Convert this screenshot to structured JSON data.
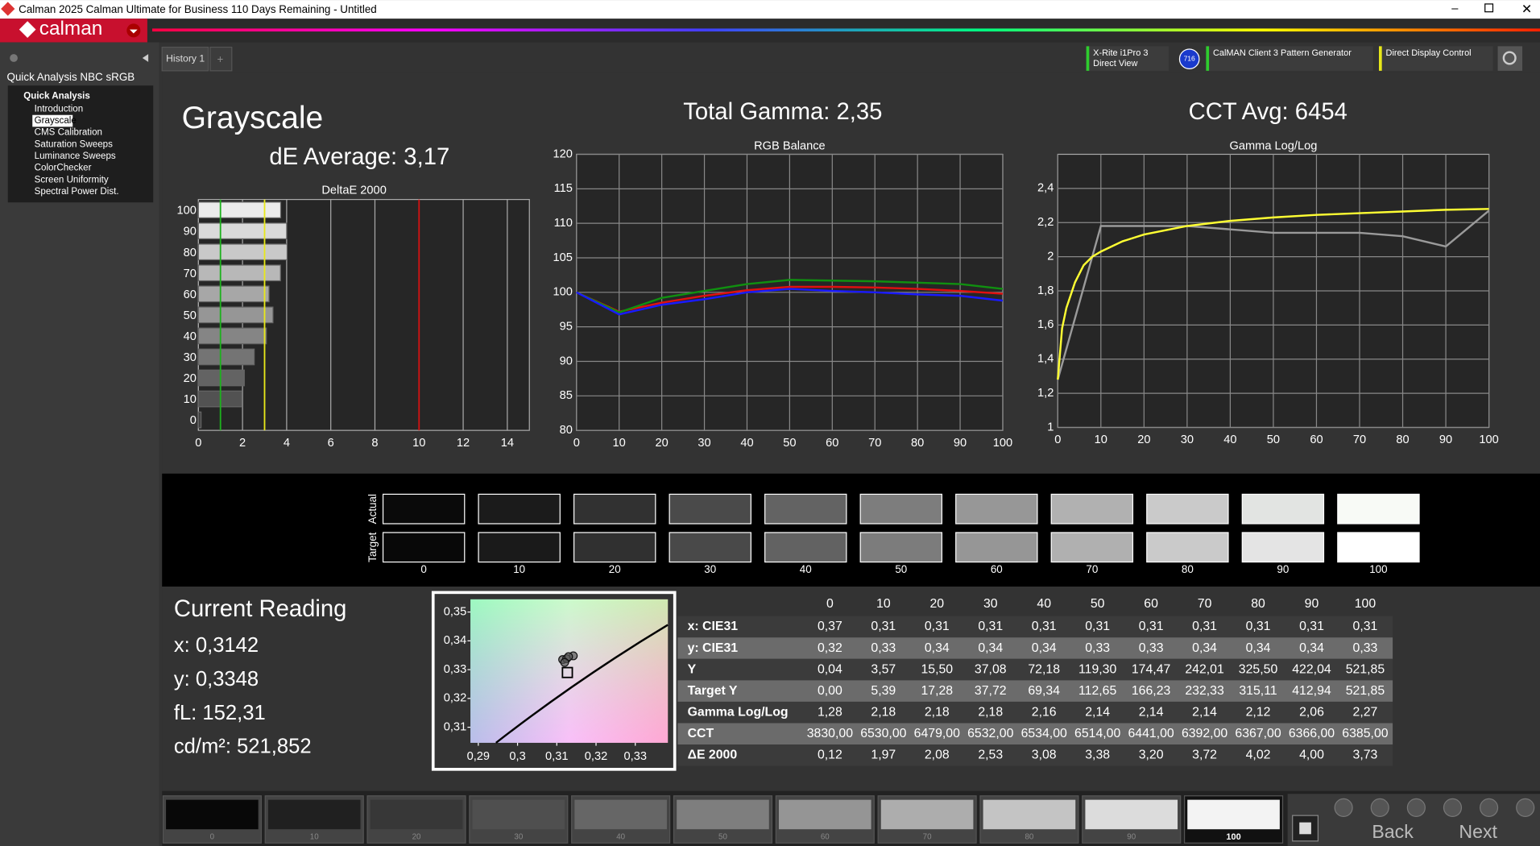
{
  "window": {
    "title": "Calman 2025 Calman Ultimate for Business 110 Days Remaining  - Untitled",
    "logo": "calman"
  },
  "tabs": [
    "History 1"
  ],
  "devices": {
    "meter": [
      "X-Rite i1Pro 3",
      "Direct View"
    ],
    "meter_badge": "716",
    "pattern_generator": "CalMAN Client 3 Pattern Generator",
    "display_control": "Direct Display Control"
  },
  "sidebar": {
    "title": "Quick Analysis NBC sRGB",
    "tree_root": "Quick Analysis",
    "items": [
      "Introduction",
      "Grayscale",
      "CMS Calibration",
      "Saturation Sweeps",
      "Luminance Sweeps",
      "ColorChecker",
      "Screen Uniformity",
      "Spectral Power Dist."
    ],
    "selected": 1
  },
  "summary": {
    "heading": "Grayscale",
    "de_average": "dE Average: 3,17",
    "total_gamma": "Total Gamma: 2,35",
    "cct_avg": "CCT Avg: 6454"
  },
  "deltae_chart": {
    "type": "bar",
    "title": "DeltaE 2000",
    "orientation": "horizontal",
    "categories": [
      "100",
      "90",
      "80",
      "70",
      "60",
      "50",
      "40",
      "30",
      "20",
      "10",
      "0"
    ],
    "values": [
      3.73,
      4.0,
      4.02,
      3.72,
      3.2,
      3.38,
      3.08,
      2.53,
      2.08,
      1.97,
      0.12
    ],
    "xlim": [
      0,
      15
    ],
    "xticks": [
      0,
      2,
      4,
      6,
      8,
      10,
      12,
      14
    ],
    "grid": true,
    "reference_lines": [
      {
        "value": 1,
        "color": "#1db11d"
      },
      {
        "value": 3,
        "color": "#e8e81a"
      },
      {
        "value": 10,
        "color": "#d11212"
      }
    ]
  },
  "rgb_chart": {
    "type": "line",
    "title": "RGB Balance",
    "x": [
      0,
      10,
      20,
      30,
      40,
      50,
      60,
      70,
      80,
      90,
      100
    ],
    "series": [
      {
        "color": "#e01010",
        "values": [
          100,
          97.2,
          98.5,
          99.5,
          100.3,
          100.8,
          100.8,
          100.7,
          100.5,
          100.2,
          99.8
        ]
      },
      {
        "color": "#109010",
        "values": [
          100,
          97.1,
          99.2,
          100.2,
          101.2,
          101.8,
          101.7,
          101.6,
          101.4,
          101.2,
          100.5
        ]
      },
      {
        "color": "#1a1aff",
        "values": [
          100,
          96.8,
          98.2,
          99.0,
          100.0,
          100.5,
          100.2,
          100.0,
          99.7,
          99.5,
          98.8
        ]
      }
    ],
    "xlim": [
      0,
      100
    ],
    "ylim": [
      80,
      120
    ],
    "xticks": [
      0,
      10,
      20,
      30,
      40,
      50,
      60,
      70,
      80,
      90,
      100
    ],
    "yticks": [
      80,
      85,
      90,
      95,
      100,
      105,
      110,
      115,
      120
    ],
    "grid": true
  },
  "gamma_chart": {
    "type": "line",
    "title": "Gamma Log/Log",
    "series": [
      {
        "color": "#9a9a9a",
        "x": [
          0,
          10,
          20,
          30,
          40,
          50,
          60,
          70,
          80,
          90,
          100
        ],
        "values": [
          1.28,
          2.18,
          2.18,
          2.18,
          2.16,
          2.14,
          2.14,
          2.14,
          2.12,
          2.06,
          2.27
        ]
      },
      {
        "color": "#ffff33",
        "x": [
          0,
          1,
          2,
          4,
          6,
          8,
          10,
          15,
          20,
          30,
          40,
          50,
          60,
          70,
          80,
          90,
          100
        ],
        "values": [
          1.28,
          1.58,
          1.7,
          1.85,
          1.95,
          2.0,
          2.03,
          2.09,
          2.13,
          2.18,
          2.21,
          2.23,
          2.245,
          2.255,
          2.265,
          2.275,
          2.28
        ]
      }
    ],
    "xlim": [
      0,
      100
    ],
    "ylim": [
      1,
      2.6
    ],
    "xticks": [
      0,
      10,
      20,
      30,
      40,
      50,
      60,
      70,
      80,
      90,
      100
    ],
    "yticks": [
      1,
      {
        "value": 1.2,
        "label": "1,2"
      },
      {
        "value": 1.4,
        "label": "1,4"
      },
      {
        "value": 1.6,
        "label": "1,6"
      },
      {
        "value": 1.8,
        "label": "1,8"
      },
      2,
      {
        "value": 2.2,
        "label": "2,2"
      },
      {
        "value": 2.4,
        "label": "2,4"
      }
    ],
    "grid": true
  },
  "patches": {
    "actual_label": "Actual",
    "target_label": "Target",
    "levels": [
      "0",
      "10",
      "20",
      "30",
      "40",
      "50",
      "60",
      "70",
      "80",
      "90",
      "100"
    ],
    "actual_colors": [
      "#0a0a0a",
      "#1b1b1b",
      "#313131",
      "#4a4a4a",
      "#636363",
      "#7d7d7d",
      "#979797",
      "#b1b1b1",
      "#cacaca",
      "#e2e4e2",
      "#f8faf6"
    ],
    "target_colors": [
      "#080808",
      "#1a1a1a",
      "#303030",
      "#494949",
      "#626262",
      "#7c7c7c",
      "#969696",
      "#b0b0b0",
      "#cacaca",
      "#e4e4e4",
      "#ffffff"
    ]
  },
  "current_reading": {
    "title": "Current Reading",
    "lines": [
      "x: 0,3142",
      "y: 0,3348",
      "fL: 152,31",
      "cd/m²: 521,852"
    ]
  },
  "cie_chart": {
    "type": "scatter",
    "xlim": [
      0.288,
      0.3383
    ],
    "ylim": [
      0.3046,
      0.3544
    ],
    "xticks": [
      {
        "value": 0.29,
        "label": "0,29"
      },
      {
        "value": 0.3,
        "label": "0,3"
      },
      {
        "value": 0.31,
        "label": "0,31"
      },
      {
        "value": 0.32,
        "label": "0,32"
      },
      {
        "value": 0.33,
        "label": "0,33"
      }
    ],
    "yticks": [
      {
        "value": 0.31,
        "label": "0,31"
      },
      {
        "value": 0.32,
        "label": "0,32"
      },
      {
        "value": 0.33,
        "label": "0,33"
      },
      {
        "value": 0.34,
        "label": "0,34"
      },
      {
        "value": 0.35,
        "label": "0,35"
      }
    ],
    "x": [
      0.3115,
      0.3125,
      0.3142,
      0.313,
      0.312
    ],
    "y": [
      0.3335,
      0.3338,
      0.3348,
      0.3345,
      0.3325
    ],
    "target": {
      "x": 0.3127,
      "y": 0.329
    }
  },
  "table": {
    "columns": [
      "0",
      "10",
      "20",
      "30",
      "40",
      "50",
      "60",
      "70",
      "80",
      "90",
      "100"
    ],
    "rows": [
      {
        "label": "x: CIE31",
        "values": [
          "0,37",
          "0,31",
          "0,31",
          "0,31",
          "0,31",
          "0,31",
          "0,31",
          "0,31",
          "0,31",
          "0,31",
          "0,31"
        ]
      },
      {
        "label": "y: CIE31",
        "values": [
          "0,32",
          "0,33",
          "0,34",
          "0,34",
          "0,34",
          "0,33",
          "0,33",
          "0,34",
          "0,34",
          "0,34",
          "0,33"
        ]
      },
      {
        "label": "Y",
        "values": [
          "0,04",
          "3,57",
          "15,50",
          "37,08",
          "72,18",
          "119,30",
          "174,47",
          "242,01",
          "325,50",
          "422,04",
          "521,85"
        ]
      },
      {
        "label": "Target Y",
        "values": [
          "0,00",
          "5,39",
          "17,28",
          "37,72",
          "69,34",
          "112,65",
          "166,23",
          "232,33",
          "315,11",
          "412,94",
          "521,85"
        ]
      },
      {
        "label": "Gamma Log/Log",
        "values": [
          "1,28",
          "2,18",
          "2,18",
          "2,18",
          "2,16",
          "2,14",
          "2,14",
          "2,14",
          "2,12",
          "2,06",
          "2,27"
        ]
      },
      {
        "label": "CCT",
        "values": [
          "3830,00",
          "6530,00",
          "6479,00",
          "6532,00",
          "6534,00",
          "6514,00",
          "6441,00",
          "6392,00",
          "6367,00",
          "6366,00",
          "6385,00"
        ]
      },
      {
        "label": "ΔE 2000",
        "values": [
          "0,12",
          "1,97",
          "2,08",
          "2,53",
          "3,08",
          "3,38",
          "3,20",
          "3,72",
          "4,02",
          "4,00",
          "3,73"
        ]
      }
    ]
  },
  "bottom_bar": {
    "levels": [
      "0",
      "10",
      "20",
      "30",
      "40",
      "50",
      "60",
      "70",
      "80",
      "90",
      "100"
    ],
    "selected": 10,
    "back": "Back",
    "next": "Next"
  }
}
